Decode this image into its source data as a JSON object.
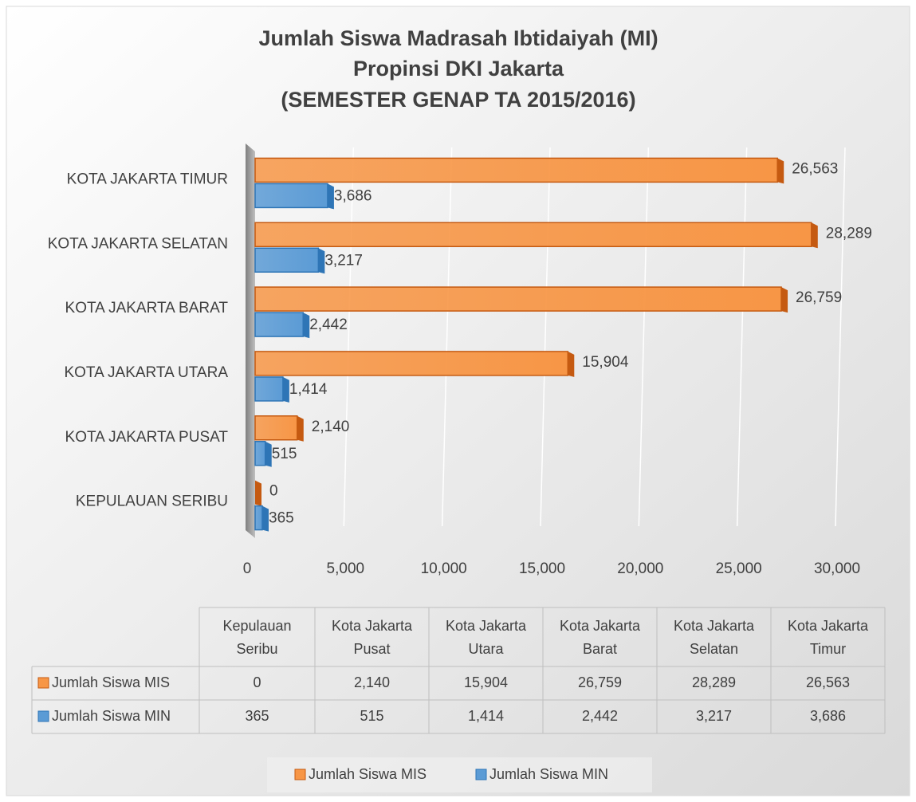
{
  "chart_data": {
    "type": "bar",
    "orientation": "horizontal",
    "title": [
      "Jumlah Siswa Madrasah Ibtidaiyah (MI)",
      "Propinsi DKI Jakarta",
      "(SEMESTER GENAP TA 2015/2016)"
    ],
    "categories": [
      "KEPULAUAN SERIBU",
      "KOTA JAKARTA PUSAT",
      "KOTA JAKARTA UTARA",
      "KOTA JAKARTA BARAT",
      "KOTA JAKARTA SELATAN",
      "KOTA JAKARTA TIMUR"
    ],
    "table_categories": [
      [
        "Kepulauan",
        "Seribu"
      ],
      [
        "Kota Jakarta",
        "Pusat"
      ],
      [
        "Kota Jakarta",
        "Utara"
      ],
      [
        "Kota Jakarta",
        "Barat"
      ],
      [
        "Kota Jakarta",
        "Selatan"
      ],
      [
        "Kota Jakarta",
        "Timur"
      ]
    ],
    "series": [
      {
        "name": "Jumlah Siswa MIS",
        "color": "#f79646",
        "values": [
          0,
          2140,
          15904,
          26759,
          28289,
          26563
        ],
        "value_labels": [
          "0",
          "2,140",
          "15,904",
          "26,759",
          "28,289",
          "26,563"
        ]
      },
      {
        "name": "Jumlah Siswa MIN",
        "color": "#5b9bd5",
        "values": [
          365,
          515,
          1414,
          2442,
          3217,
          3686
        ],
        "value_labels": [
          "365",
          "515",
          "1,414",
          "2,442",
          "3,217",
          "3,686"
        ]
      }
    ],
    "xlim": [
      0,
      30000
    ],
    "xticks": [
      0,
      {
        "value": 5000,
        "label": "5,000"
      },
      {
        "value": 10000,
        "label": "10,000"
      },
      {
        "value": 15000,
        "label": "15,000"
      },
      {
        "value": 20000,
        "label": "20,000"
      },
      {
        "value": 25000,
        "label": "25,000"
      },
      {
        "value": 30000,
        "label": "30,000"
      }
    ],
    "grid": true,
    "legend": "bottom",
    "data_table": true
  }
}
